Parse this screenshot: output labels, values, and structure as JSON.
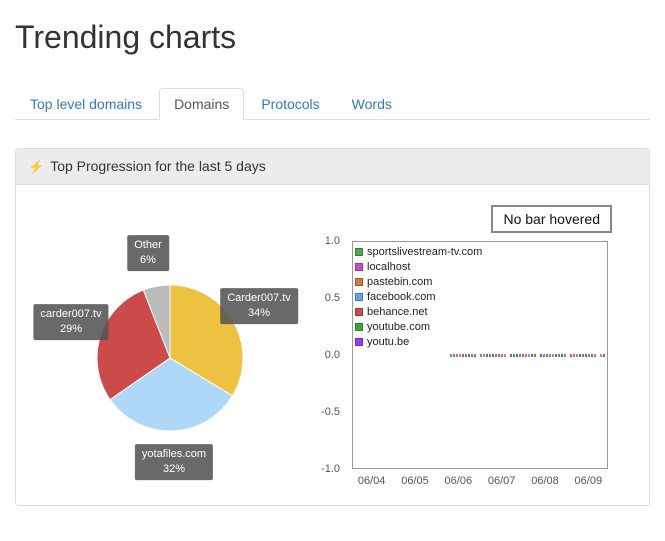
{
  "page": {
    "title": "Trending charts"
  },
  "tabs": [
    {
      "label": "Top level domains",
      "active": false
    },
    {
      "label": "Domains",
      "active": true
    },
    {
      "label": "Protocols",
      "active": false
    },
    {
      "label": "Words",
      "active": false
    }
  ],
  "panel": {
    "icon": "⚡",
    "heading": "Top Progression for the last 5 days"
  },
  "hover_box": {
    "label": "No bar hovered"
  },
  "chart_data": [
    {
      "type": "pie",
      "title": "Top domains share",
      "slices": [
        {
          "label": "Carder007.tv",
          "percent": "34%",
          "value": 34,
          "color": "#edc240"
        },
        {
          "label": "yotafiles.com",
          "percent": "32%",
          "value": 32,
          "color": "#afd8f8"
        },
        {
          "label": "carder007.tv",
          "percent": "29%",
          "value": 29,
          "color": "#cb4b4b"
        },
        {
          "label": "Other",
          "percent": "6%",
          "value": 6,
          "color": "#bbbbbb"
        }
      ]
    },
    {
      "type": "bar",
      "title": "Domain progression over last days",
      "categories": [
        "06/04",
        "06/05",
        "06/06",
        "06/07",
        "06/08",
        "06/09"
      ],
      "yticks": [
        "1.0",
        "0.5",
        "0.0",
        "-0.5",
        "-1.0"
      ],
      "ylim": [
        -1,
        1
      ],
      "legend_position": "top-left",
      "series": [
        {
          "name": "sportslivestream-tv.com",
          "color": "#4da74d",
          "values": [
            null,
            null,
            null,
            0,
            0,
            0
          ]
        },
        {
          "name": "localhost",
          "color": "#c24fc2",
          "values": [
            null,
            null,
            null,
            0,
            0,
            0
          ]
        },
        {
          "name": "pastebin.com",
          "color": "#cb7b3b",
          "values": [
            null,
            null,
            null,
            0,
            0,
            0
          ]
        },
        {
          "name": "facebook.com",
          "color": "#6aa3e0",
          "values": [
            null,
            null,
            null,
            0,
            0,
            0
          ]
        },
        {
          "name": "behance.net",
          "color": "#cb4b4b",
          "values": [
            null,
            null,
            null,
            0,
            0,
            0
          ]
        },
        {
          "name": "youtube.com",
          "color": "#3fa43f",
          "values": [
            null,
            null,
            null,
            0,
            0,
            0
          ]
        },
        {
          "name": "youtu.be",
          "color": "#9440ed",
          "values": [
            null,
            null,
            null,
            0,
            0,
            0
          ]
        }
      ]
    }
  ]
}
